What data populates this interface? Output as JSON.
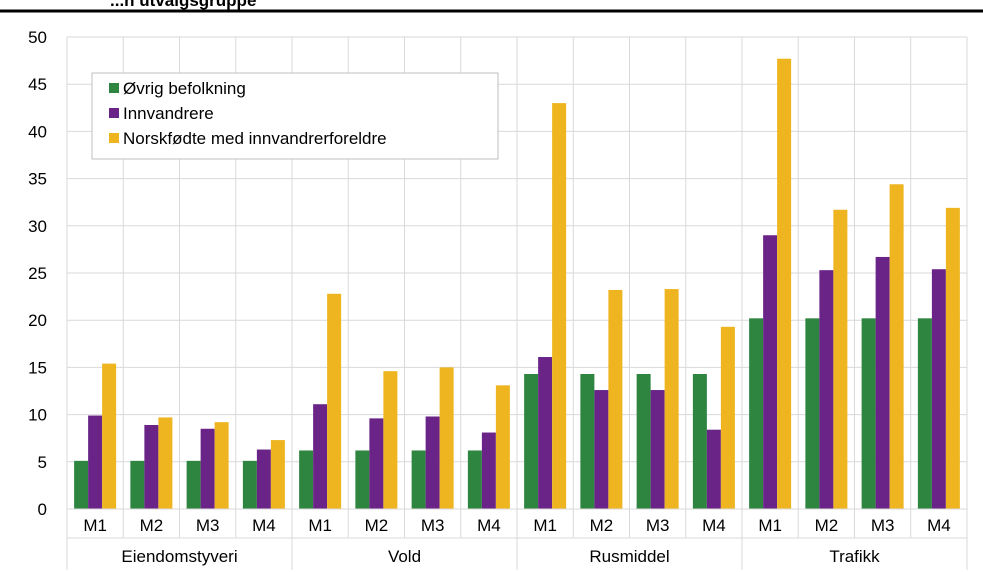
{
  "header": {
    "title_fragment": "...n utvalgsgruppe"
  },
  "chart_data": {
    "type": "bar",
    "groups": [
      "Eiendomstyveri",
      "Vold",
      "Rusmiddel",
      "Trafikk"
    ],
    "subcategories": [
      "M1",
      "M2",
      "M3",
      "M4"
    ],
    "categories": [
      "M1",
      "M2",
      "M3",
      "M4",
      "M1",
      "M2",
      "M3",
      "M4",
      "M1",
      "M2",
      "M3",
      "M4",
      "M1",
      "M2",
      "M3",
      "M4"
    ],
    "series": [
      {
        "name": "Øvrig befolkning",
        "color": "#2e8540",
        "values": [
          5.1,
          5.1,
          5.1,
          5.1,
          6.2,
          6.2,
          6.2,
          6.2,
          14.3,
          14.3,
          14.3,
          14.3,
          20.2,
          20.2,
          20.2,
          20.2
        ]
      },
      {
        "name": "Innvandrere",
        "color": "#6a2487",
        "values": [
          9.9,
          8.9,
          8.5,
          6.3,
          11.1,
          9.6,
          9.8,
          8.1,
          16.1,
          12.6,
          12.6,
          8.4,
          29.0,
          25.3,
          26.7,
          25.4
        ]
      },
      {
        "name": "Norskfødte med innvandrerforeldre",
        "color": "#efb521",
        "values": [
          15.4,
          9.7,
          9.2,
          7.3,
          22.8,
          14.6,
          15.0,
          13.1,
          43.0,
          23.2,
          23.3,
          19.3,
          47.7,
          31.7,
          34.4,
          31.9
        ]
      }
    ],
    "ylim": [
      0,
      50
    ],
    "yticks": [
      "0",
      "5",
      "10",
      "15",
      "20",
      "25",
      "30",
      "35",
      "40",
      "45",
      "50"
    ],
    "grid": true,
    "legend_position": "top-left"
  }
}
